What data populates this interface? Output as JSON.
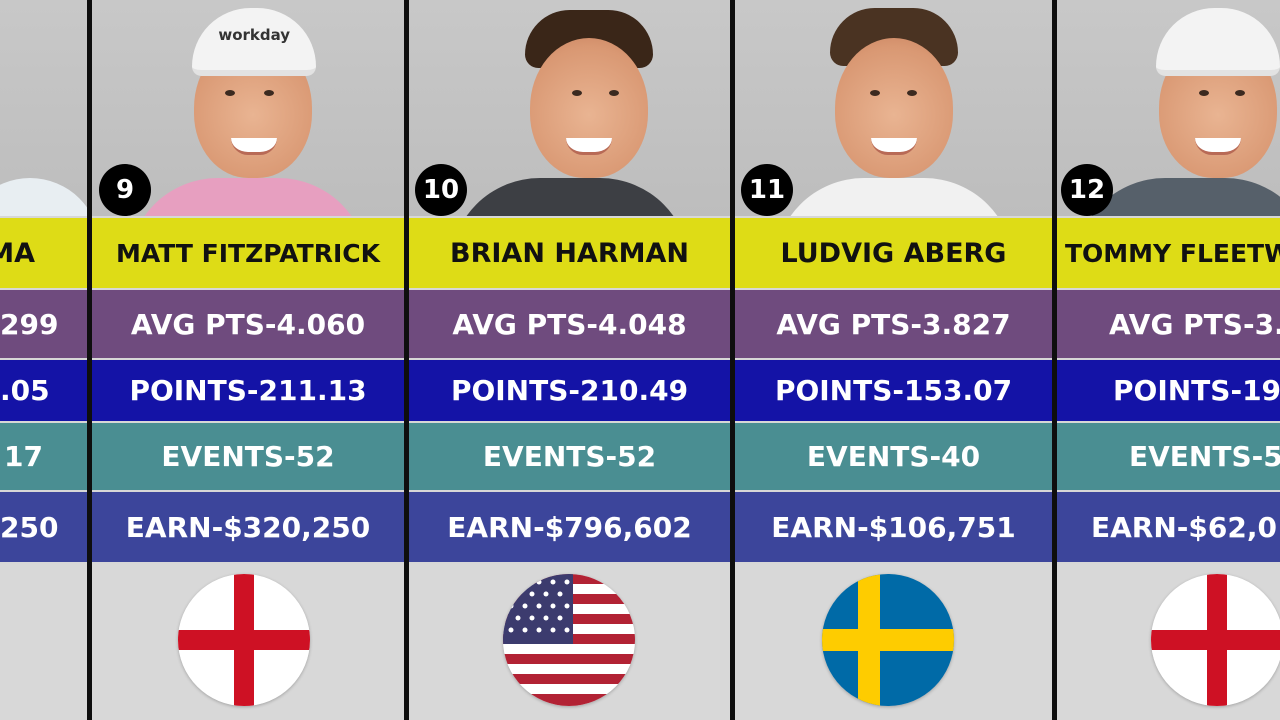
{
  "players": [
    {
      "rank": "",
      "name": "MA",
      "avg": "299",
      "points": ".05",
      "events": "17",
      "earn": "250",
      "country": "england-flag"
    },
    {
      "rank": "9",
      "name": "MATT FITZPATRICK",
      "avg": "AVG PTS-4.060",
      "points": "POINTS-211.13",
      "events": "EVENTS-52",
      "earn": "EARN-$320,250",
      "country": "england-flag",
      "cap_brand": "workday"
    },
    {
      "rank": "10",
      "name": "BRIAN HARMAN",
      "avg": "AVG PTS-4.048",
      "points": "POINTS-210.49",
      "events": "EVENTS-52",
      "earn": "EARN-$796,602",
      "country": "usa-flag"
    },
    {
      "rank": "11",
      "name": "LUDVIG ABERG",
      "avg": "AVG PTS-3.827",
      "points": "POINTS-153.07",
      "events": "EVENTS-40",
      "earn": "EARN-$106,751",
      "country": "sweden-flag"
    },
    {
      "rank": "12",
      "name": "TOMMY FLEETW",
      "avg": "AVG PTS-3.7",
      "points": "POINTS-195",
      "events": "EVENTS-5",
      "earn": "EARN-$62,0",
      "country": "england-flag"
    }
  ],
  "colors": {
    "name_bg": "#dedc16",
    "avg_bg": "#6f4b7e",
    "points_bg": "#1413a6",
    "events_bg": "#4a8e92",
    "earn_bg": "#3c459b"
  }
}
